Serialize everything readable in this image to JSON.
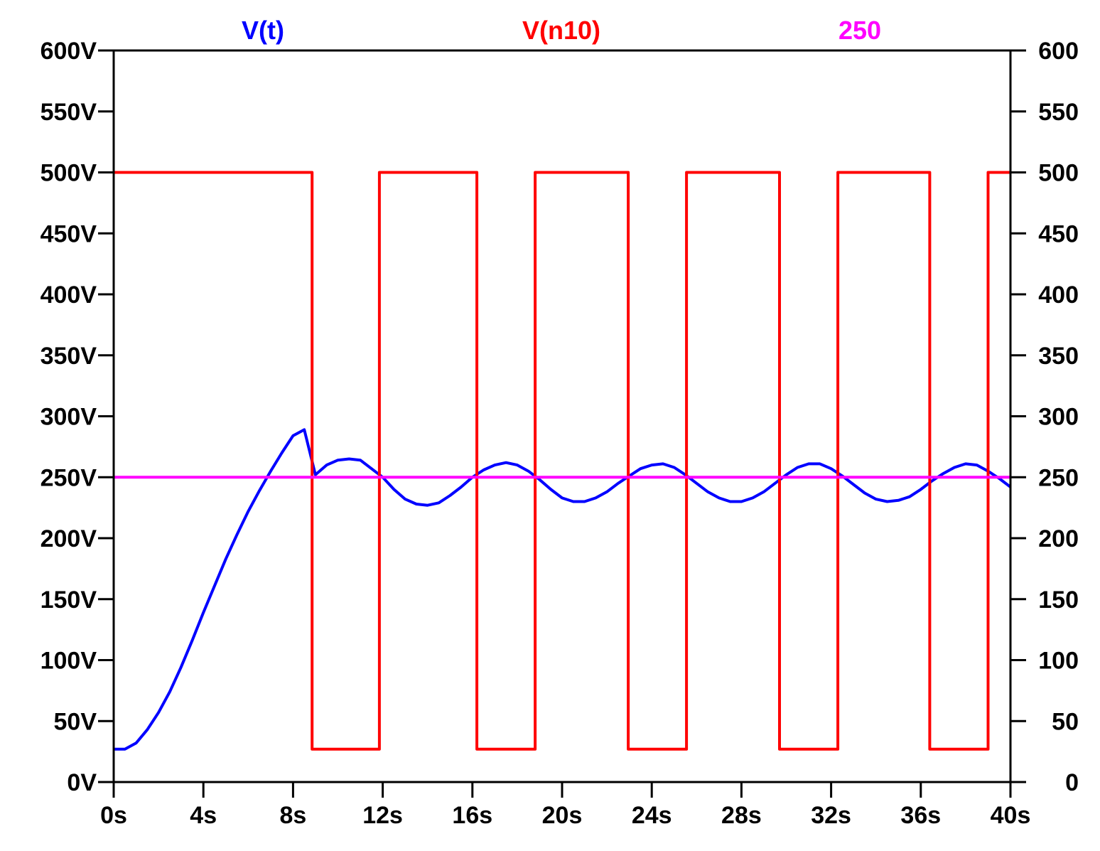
{
  "chart_data": {
    "type": "line",
    "title": "",
    "xlabel": "",
    "ylabel": "",
    "xlim": [
      0,
      40
    ],
    "ylim": [
      0,
      600
    ],
    "y2lim": [
      0,
      600
    ],
    "grid": false,
    "legend_position": "top",
    "x_ticks": [
      "0s",
      "4s",
      "8s",
      "12s",
      "16s",
      "20s",
      "24s",
      "28s",
      "32s",
      "36s",
      "40s"
    ],
    "x_tick_values": [
      0,
      4,
      8,
      12,
      16,
      20,
      24,
      28,
      32,
      36,
      40
    ],
    "y_ticks": [
      "0V",
      "50V",
      "100V",
      "150V",
      "200V",
      "250V",
      "300V",
      "350V",
      "400V",
      "450V",
      "500V",
      "550V",
      "600V"
    ],
    "y2_ticks": [
      "0",
      "50",
      "100",
      "150",
      "200",
      "250",
      "300",
      "350",
      "400",
      "450",
      "500",
      "550",
      "600"
    ],
    "y_tick_values": [
      0,
      50,
      100,
      150,
      200,
      250,
      300,
      350,
      400,
      450,
      500,
      550,
      600
    ],
    "series": [
      {
        "name": "V(t)",
        "color": "#0000ff",
        "x": [
          0,
          0.5,
          1,
          1.5,
          2,
          2.5,
          3,
          3.5,
          4,
          4.5,
          5,
          5.5,
          6,
          6.5,
          7,
          7.5,
          8,
          8.5,
          9,
          9.5,
          10,
          10.5,
          11,
          11.5,
          12,
          12.5,
          13,
          13.5,
          14,
          14.5,
          15,
          15.5,
          16,
          16.5,
          17,
          17.5,
          18,
          18.5,
          19,
          19.5,
          20,
          20.5,
          21,
          21.5,
          22,
          22.5,
          23,
          23.5,
          24,
          24.5,
          25,
          25.5,
          26,
          26.5,
          27,
          27.5,
          28,
          28.5,
          29,
          29.5,
          30,
          30.5,
          31,
          31.5,
          32,
          32.5,
          33,
          33.5,
          34,
          34.5,
          35,
          35.5,
          36,
          36.5,
          37,
          37.5,
          38,
          38.5,
          39,
          39.5,
          40
        ],
        "y": [
          27,
          27,
          32,
          43,
          57,
          74,
          94,
          116,
          139,
          161,
          183,
          203,
          222,
          239,
          255,
          270,
          284,
          289,
          252,
          260,
          264,
          265,
          264,
          257,
          250,
          240,
          232,
          228,
          227,
          229,
          235,
          242,
          250,
          256,
          260,
          262,
          260,
          255,
          248,
          240,
          233,
          230,
          230,
          233,
          238,
          245,
          251,
          257,
          260,
          261,
          258,
          252,
          245,
          238,
          233,
          230,
          230,
          233,
          238,
          245,
          252,
          258,
          261,
          261,
          257,
          251,
          244,
          237,
          232,
          230,
          231,
          234,
          240,
          247,
          253,
          258,
          261,
          260,
          255,
          249,
          242
        ]
      },
      {
        "name": "V(n10)",
        "color": "#ff0000",
        "x": [
          0,
          8.85,
          8.85,
          11.85,
          11.85,
          16.2,
          16.2,
          18.8,
          18.8,
          22.95,
          22.95,
          25.55,
          25.55,
          29.7,
          29.7,
          32.3,
          32.3,
          36.4,
          36.4,
          39.0,
          39.0,
          40
        ],
        "y": [
          500,
          500,
          27,
          27,
          500,
          500,
          27,
          27,
          500,
          500,
          27,
          27,
          500,
          500,
          27,
          27,
          500,
          500,
          27,
          27,
          500,
          500
        ]
      },
      {
        "name": "250",
        "color": "#ff00ff",
        "x": [
          0,
          40
        ],
        "y": [
          250,
          250
        ]
      }
    ]
  }
}
